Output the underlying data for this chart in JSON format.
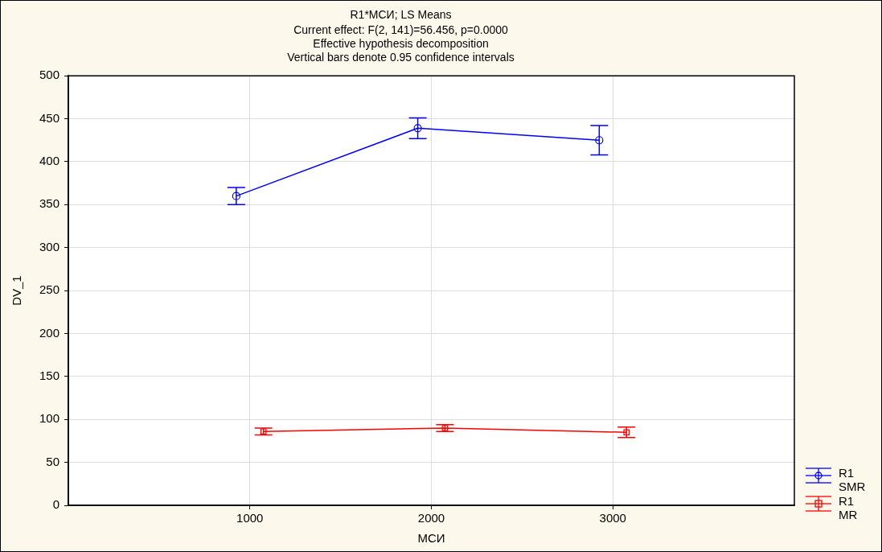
{
  "chart_data": {
    "type": "line",
    "title": "R1*МСИ; LS Means",
    "subtitle": [
      "Current effect: F(2, 141)=56.456, p=0.0000",
      "Effective hypothesis decomposition",
      "Vertical bars denote 0.95 confidence intervals"
    ],
    "xlabel": "МСИ",
    "ylabel": "DV_1",
    "xlim": [
      0,
      4000
    ],
    "xticks": [
      1000,
      2000,
      3000
    ],
    "ylim": [
      0,
      500
    ],
    "yticks": [
      0,
      50,
      100,
      150,
      200,
      250,
      300,
      350,
      400,
      450,
      500
    ],
    "grid": true,
    "legend": "bottom right",
    "series": [
      {
        "name": "R1 SMR",
        "color": "#0000ff",
        "marker": "circle",
        "x": [
          925,
          1925,
          2925
        ],
        "values": [
          360,
          439,
          425
        ],
        "errors": [
          10,
          12,
          17
        ]
      },
      {
        "name": "R1 MR",
        "color": "#ff0000",
        "marker": "square",
        "x": [
          1075,
          2075,
          3075
        ],
        "values": [
          86,
          90,
          85
        ],
        "errors": [
          4,
          4,
          6
        ]
      }
    ]
  }
}
